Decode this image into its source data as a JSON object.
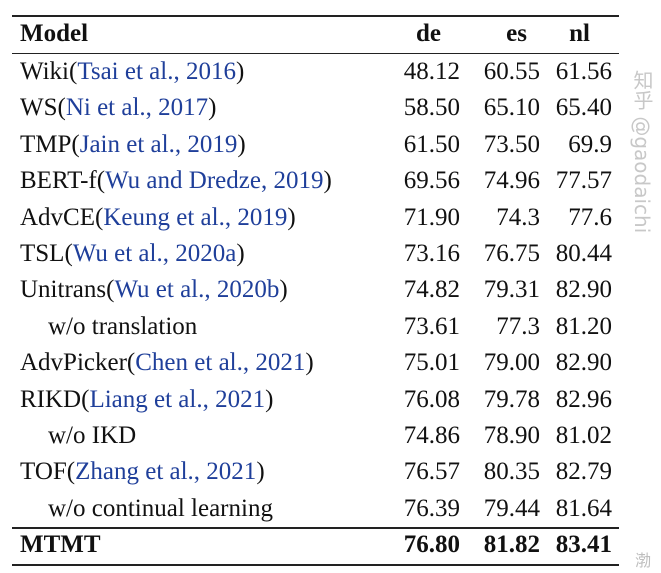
{
  "header": {
    "model": "Model",
    "cols": [
      "de",
      "es",
      "nl"
    ]
  },
  "rows": [
    {
      "name": "Wiki",
      "cite": "Tsai et al., 2016",
      "indent": false,
      "values": [
        "48.12",
        "60.55",
        "61.56"
      ]
    },
    {
      "name": "WS",
      "cite": "Ni et al., 2017",
      "indent": false,
      "values": [
        "58.50",
        "65.10",
        "65.40"
      ]
    },
    {
      "name": "TMP",
      "cite": "Jain et al., 2019",
      "indent": false,
      "values": [
        "61.50",
        "73.50",
        "69.9"
      ]
    },
    {
      "name": "BERT-f",
      "cite": "Wu and Dredze, 2019",
      "indent": false,
      "values": [
        "69.56",
        "74.96",
        "77.57"
      ]
    },
    {
      "name": "AdvCE",
      "cite": "Keung et al., 2019",
      "indent": false,
      "values": [
        "71.90",
        "74.3",
        "77.6"
      ]
    },
    {
      "name": "TSL",
      "cite": "Wu et al., 2020a",
      "indent": false,
      "values": [
        "73.16",
        "76.75",
        "80.44"
      ]
    },
    {
      "name": "Unitrans",
      "cite": "Wu et al., 2020b",
      "indent": false,
      "values": [
        "74.82",
        "79.31",
        "82.90"
      ]
    },
    {
      "name": "w/o translation",
      "cite": "",
      "indent": true,
      "values": [
        "73.61",
        "77.3",
        "81.20"
      ]
    },
    {
      "name": "AdvPicker",
      "cite": "Chen et al., 2021",
      "indent": false,
      "values": [
        "75.01",
        "79.00",
        "82.90"
      ]
    },
    {
      "name": "RIKD",
      "cite": "Liang et al., 2021",
      "indent": false,
      "values": [
        "76.08",
        "79.78",
        "82.96"
      ]
    },
    {
      "name": "w/o IKD",
      "cite": "",
      "indent": true,
      "values": [
        "74.86",
        "78.90",
        "81.02"
      ]
    },
    {
      "name": "TOF",
      "cite": "Zhang et al., 2021",
      "indent": false,
      "values": [
        "76.57",
        "80.35",
        "82.79"
      ]
    },
    {
      "name": "w/o continual learning",
      "cite": "",
      "indent": true,
      "values": [
        "76.39",
        "79.44",
        "81.64"
      ]
    }
  ],
  "final": {
    "name": "MTMT",
    "values": [
      "76.80",
      "81.82",
      "83.41"
    ]
  },
  "watermark": "知乎 @gaodaichi",
  "colors": {
    "citation": "#1f3f9a"
  }
}
